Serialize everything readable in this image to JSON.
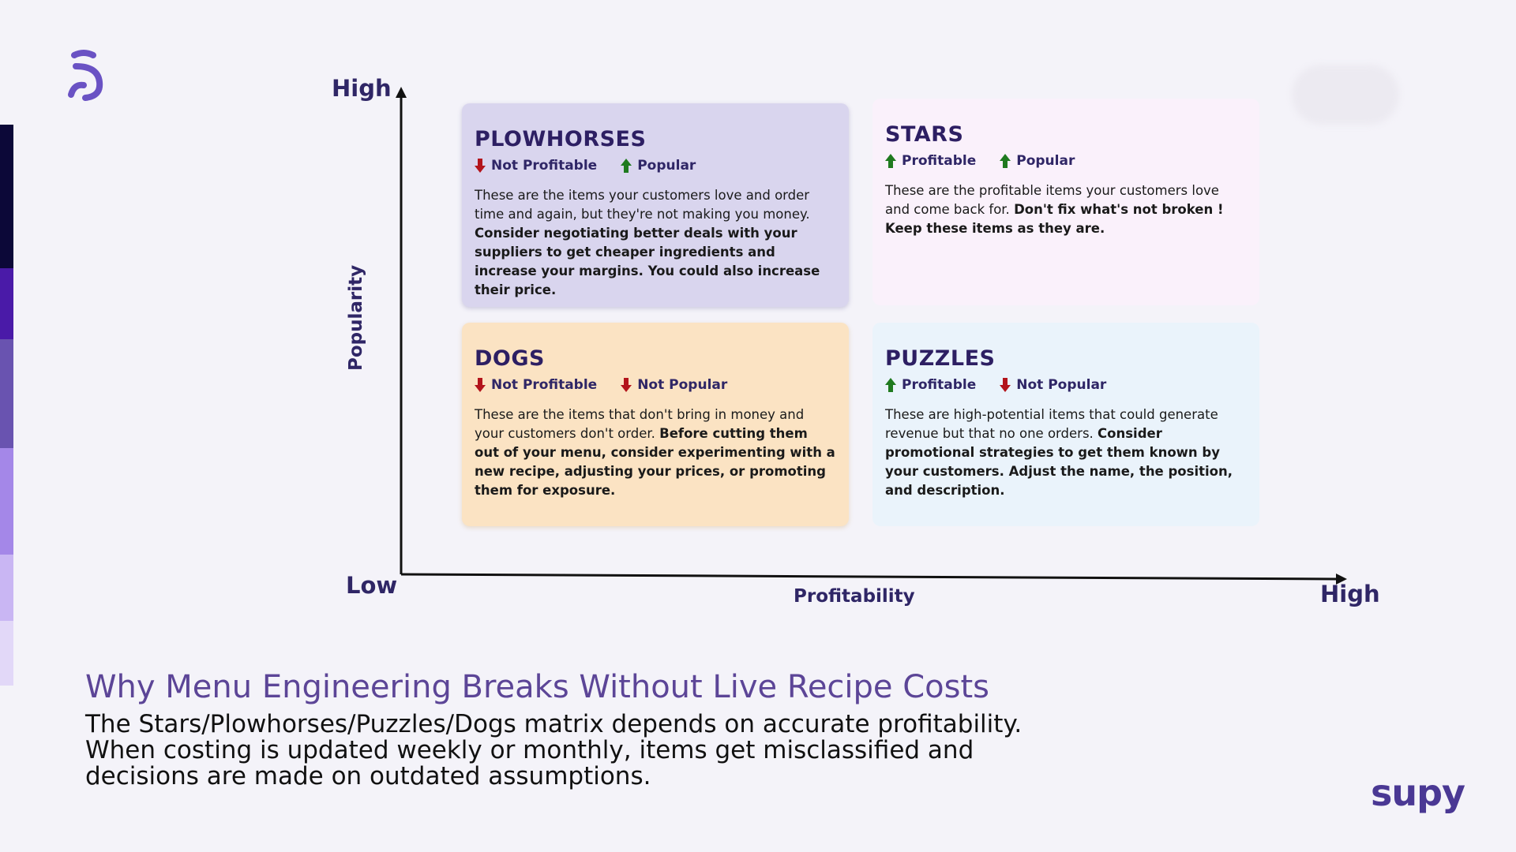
{
  "matrix": {
    "y_high": "High",
    "x_low": "Low",
    "x_high": "High",
    "y_axis_title": "Popularity",
    "x_axis_title": "Profitability",
    "quadrants": {
      "plowhorses": {
        "title": "PLOWHORSES",
        "tag1": "Not Profitable",
        "tag2": "Popular",
        "desc": "These are the items your customers love and order time and again, but they're not making you money.",
        "advice": "Consider negotiating better deals with your suppliers to get cheaper ingredients and increase your margins. You could also increase their price."
      },
      "stars": {
        "title": "STARS",
        "tag1": "Profitable",
        "tag2": "Popular",
        "desc": "These are the profitable items your customers love and come back for.",
        "advice": "Don't fix what's not broken ! Keep these items as they are."
      },
      "dogs": {
        "title": "DOGS",
        "tag1": "Not Profitable",
        "tag2": "Not Popular",
        "desc": "These are the items that don't bring in money and your customers don't order.",
        "advice": "Before cutting them out of your menu, consider experimenting with a new recipe, adjusting your prices, or promoting them for exposure."
      },
      "puzzles": {
        "title": "PUZZLES",
        "tag1": "Profitable",
        "tag2": "Not Popular",
        "desc": "These are high-potential items that could generate revenue but that no one orders.",
        "advice": "Consider promotional strategies to get them known by your customers. Adjust the name, the position, and description."
      }
    }
  },
  "headline": "Why Menu Engineering Breaks Without Live Recipe Costs",
  "body_line1": "The Stars/Plowhorses/Puzzles/Dogs matrix depends on accurate profitability.",
  "body_line2": "When costing is updated weekly or monthly, items get misclassified and",
  "body_line3": "decisions are made on outdated assumptions.",
  "brand": "supy",
  "colors": {
    "accent": "#5c4597",
    "up_arrow": "#1f7a1f",
    "down_arrow": "#b3141b"
  }
}
